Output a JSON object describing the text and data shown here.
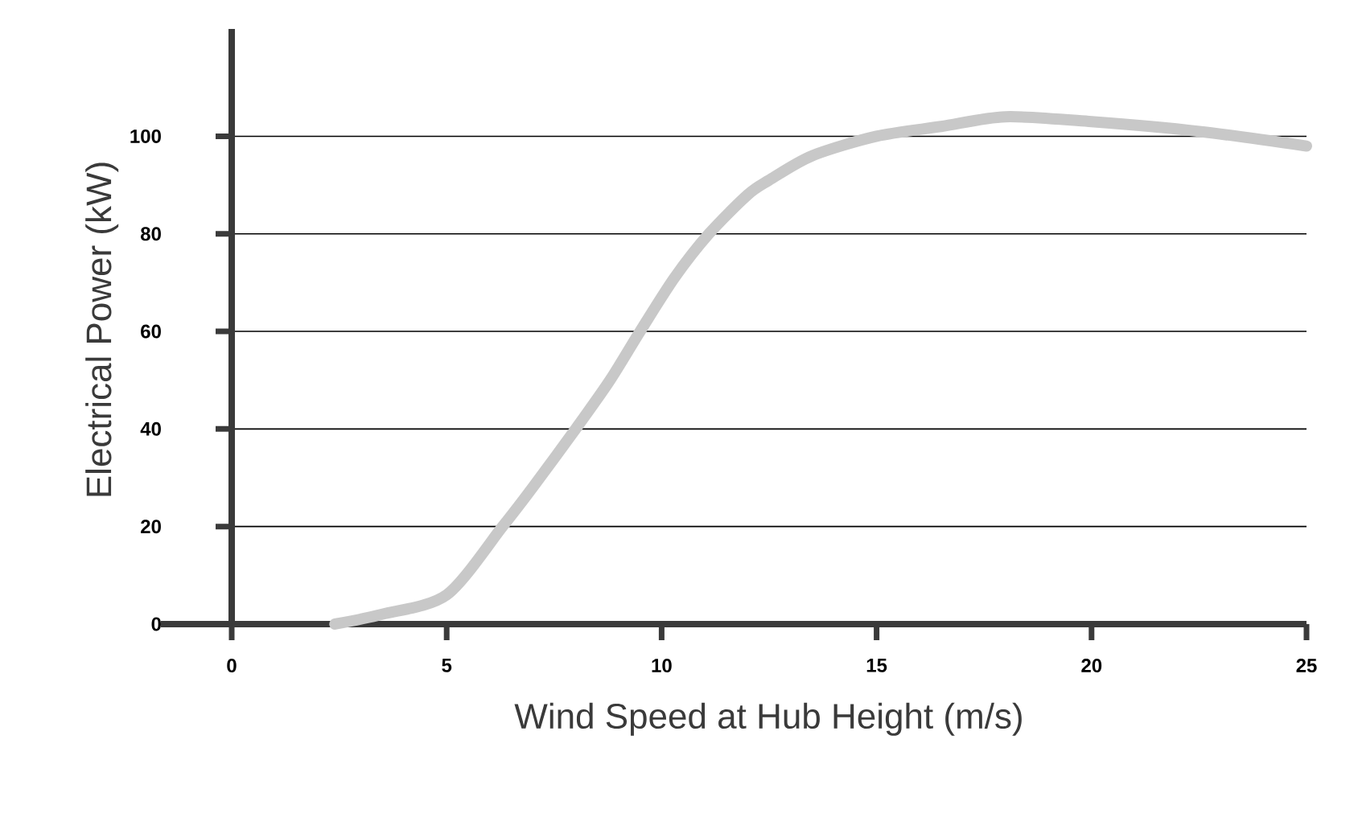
{
  "chart_data": {
    "type": "line",
    "xlabel": "Wind Speed at Hub Height (m/s)",
    "ylabel": "Electrical Power (kW)",
    "x": [
      2.4,
      3.5,
      5,
      6.3,
      7,
      8,
      8.8,
      9.5,
      10.3,
      11.1,
      12,
      12.5,
      13.5,
      15,
      16.5,
      18,
      20,
      22.5,
      25
    ],
    "series": [
      {
        "color": "#c8c8c8",
        "values": [
          0,
          2,
          6,
          20,
          28,
          40,
          50,
          60,
          71,
          80,
          88,
          91,
          96,
          100,
          102,
          104,
          103,
          101,
          98
        ]
      }
    ],
    "xlim": [
      0,
      25
    ],
    "ylim": [
      0,
      122
    ],
    "xticks": [
      0,
      5,
      10,
      15,
      20,
      25
    ],
    "yticks": [
      0,
      20,
      40,
      60,
      80,
      100
    ],
    "grid": "y",
    "marker": "none",
    "line_style": "solid"
  }
}
